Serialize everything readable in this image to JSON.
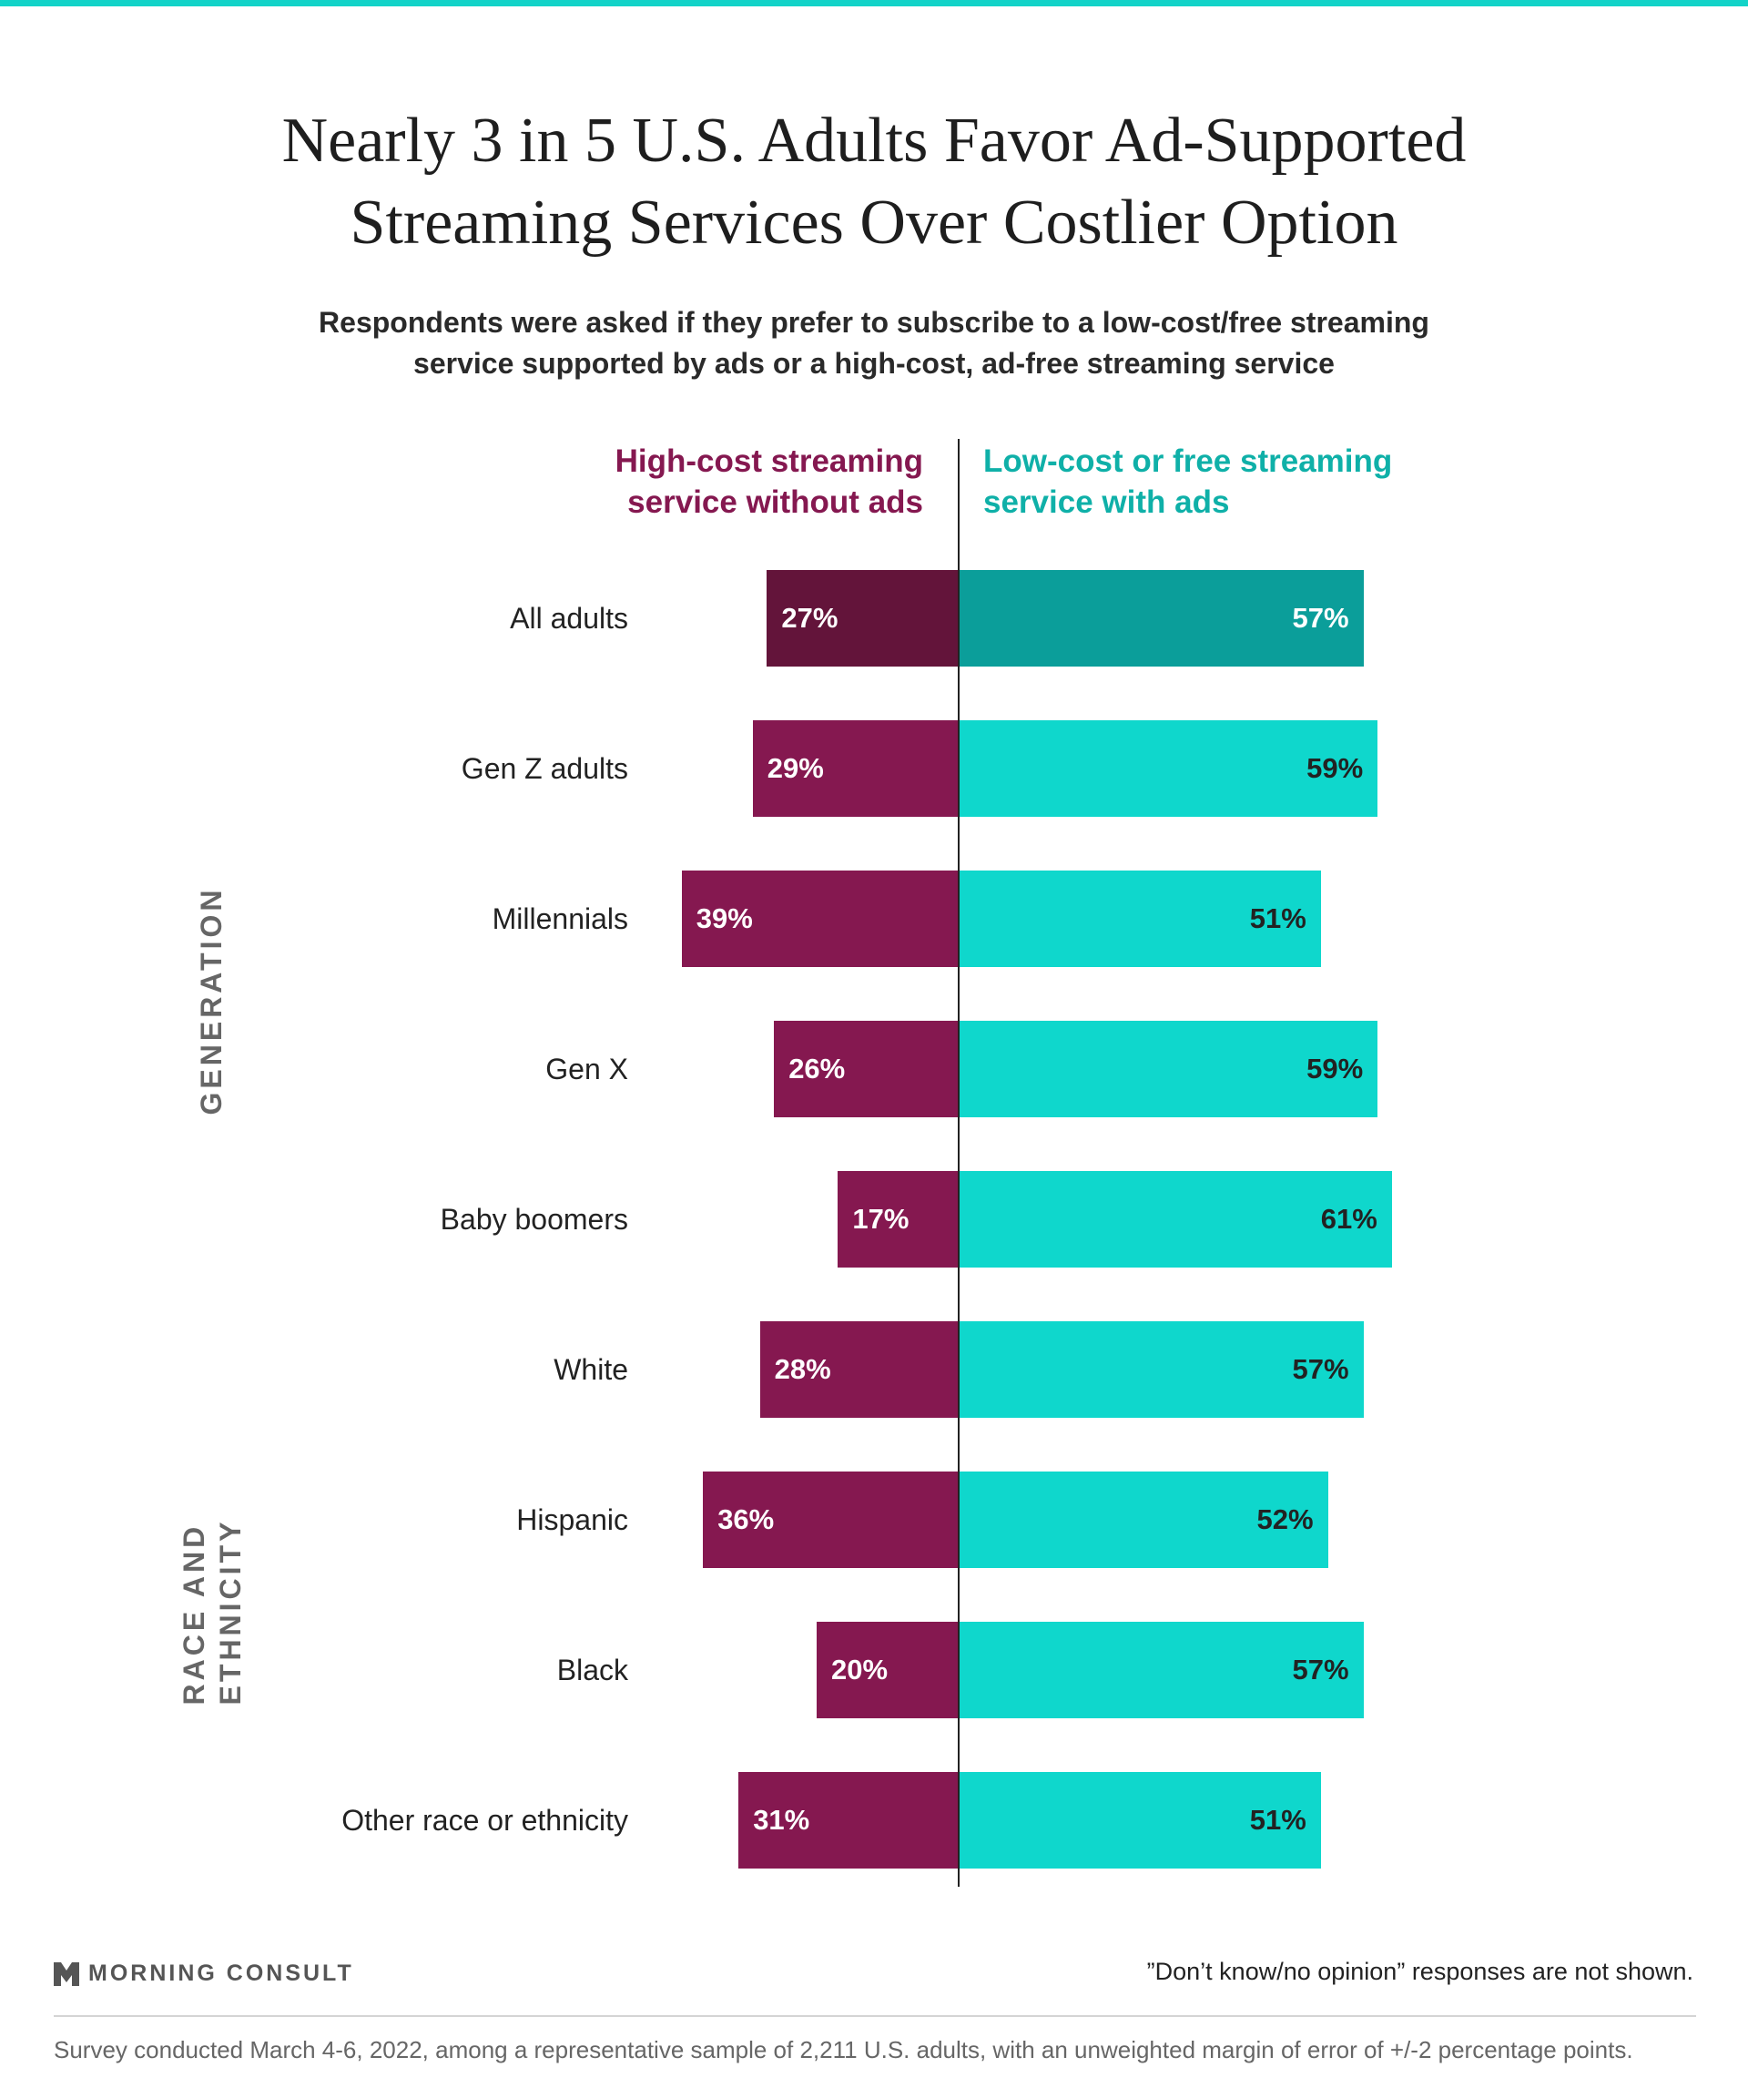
{
  "title_lines": [
    "Nearly 3 in 5 U.S. Adults Favor Ad-Supported",
    "Streaming Services Over Costlier Option"
  ],
  "subtitle_lines": [
    "Respondents were asked if they prefer to subscribe to a low-cost/free streaming",
    "service supported by ads or a high-cost, ad-free streaming service"
  ],
  "legend": {
    "left_lines": [
      "High-cost streaming",
      "service without ads"
    ],
    "right_lines": [
      "Low-cost or free streaming",
      "service with ads"
    ]
  },
  "groups": {
    "generation": "GENERATION",
    "race_lines": [
      "RACE AND",
      "ETHNICITY"
    ]
  },
  "colors": {
    "high_cost": "#851850",
    "high_cost_highlight": "#63143a",
    "low_cost": "#0fd7cc",
    "low_cost_highlight": "#0b9e9a"
  },
  "chart_data": {
    "type": "bar",
    "orientation": "horizontal-diverging",
    "categories": [
      "All adults",
      "Gen Z adults",
      "Millennials",
      "Gen X",
      "Baby boomers",
      "White",
      "Hispanic",
      "Black",
      "Other race or ethnicity"
    ],
    "series": [
      {
        "name": "High-cost streaming service without ads",
        "values": [
          27,
          29,
          39,
          26,
          17,
          28,
          36,
          20,
          31
        ]
      },
      {
        "name": "Low-cost or free streaming service with ads",
        "values": [
          57,
          59,
          51,
          59,
          61,
          57,
          52,
          57,
          51
        ]
      }
    ],
    "value_suffix": "%",
    "highlighted_category": "All adults"
  },
  "footer": {
    "brand": "MORNING CONSULT",
    "note": "”Don’t know/no opinion” responses are not shown.",
    "survey": "Survey conducted March 4-6, 2022, among a representative sample of 2,211 U.S. adults, with an unweighted margin of error of +/-2 percentage points."
  }
}
